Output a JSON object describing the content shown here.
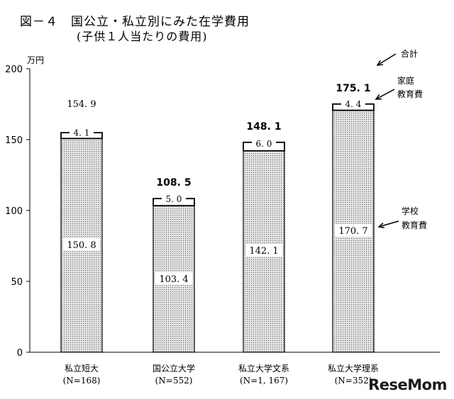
{
  "figure": {
    "title": "図－４　国公立・私立別にみた在学費用",
    "subtitle": "(子供１人当たりの費用)",
    "watermark": "ReseMom"
  },
  "chart_data": {
    "type": "bar",
    "stacked": true,
    "ylabel": "万円",
    "ylim": [
      0,
      200
    ],
    "yticks": [
      0,
      50,
      100,
      150,
      200
    ],
    "grid": false,
    "categories": [
      "私立短大",
      "国公立大学",
      "私立大学文系",
      "私立大学理系"
    ],
    "category_counts": [
      "(N=168)",
      "(N=552)",
      "(N=1, 167)",
      "(N=352)"
    ],
    "series": [
      {
        "name": "学校\n教育費",
        "values": [
          150.8,
          103.4,
          142.1,
          170.7
        ],
        "labels": [
          "150. 8",
          "103. 4",
          "142. 1",
          "170. 7"
        ]
      },
      {
        "name": "家庭\n教育費",
        "values": [
          4.1,
          5.0,
          6.0,
          4.4
        ],
        "labels": [
          "4. 1",
          "5. 0",
          "6. 0",
          "4. 4"
        ]
      }
    ],
    "totals": {
      "name": "合計",
      "values": [
        154.9,
        108.5,
        148.1,
        175.1
      ],
      "labels": [
        "154. 9",
        "108. 5",
        "148. 1",
        "175. 1"
      ],
      "bold": [
        false,
        true,
        true,
        true
      ]
    },
    "annotations": [
      "合計",
      "家庭\n教育費",
      "学校\n教育費"
    ],
    "colors": {
      "school": "#d9d9d9",
      "home": "#ffffff",
      "stroke": "#000000"
    }
  }
}
